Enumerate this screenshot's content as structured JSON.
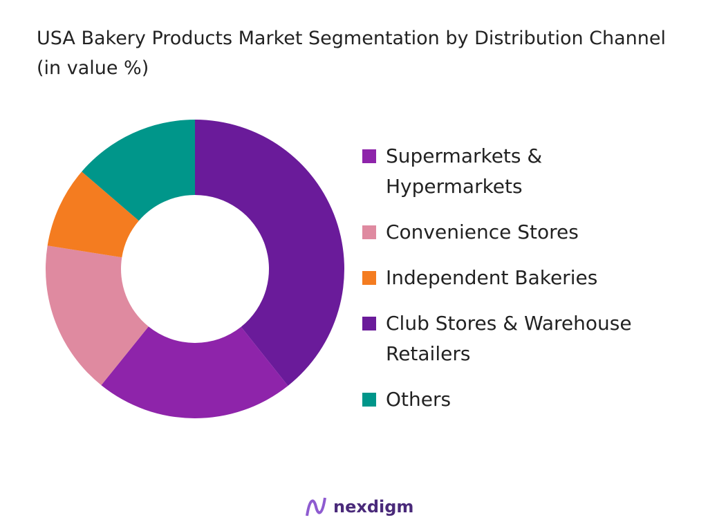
{
  "chart_data": {
    "type": "donut",
    "title": "USA Bakery Products Market Segmentation by Distribution Channel (in value %)",
    "categories": [
      "Supermarkets & Hypermarkets",
      "Convenience Stores",
      "Independent Bakeries",
      "Club Stores & Warehouse Retailers",
      "Others"
    ],
    "values": [
      21.5,
      16.7,
      8.8,
      39.3,
      13.7
    ],
    "colors": [
      "#8e24aa",
      "#df8aa0",
      "#f47c20",
      "#6a1b9a",
      "#00968a"
    ],
    "legend": "right"
  },
  "footer": "nexdigm"
}
